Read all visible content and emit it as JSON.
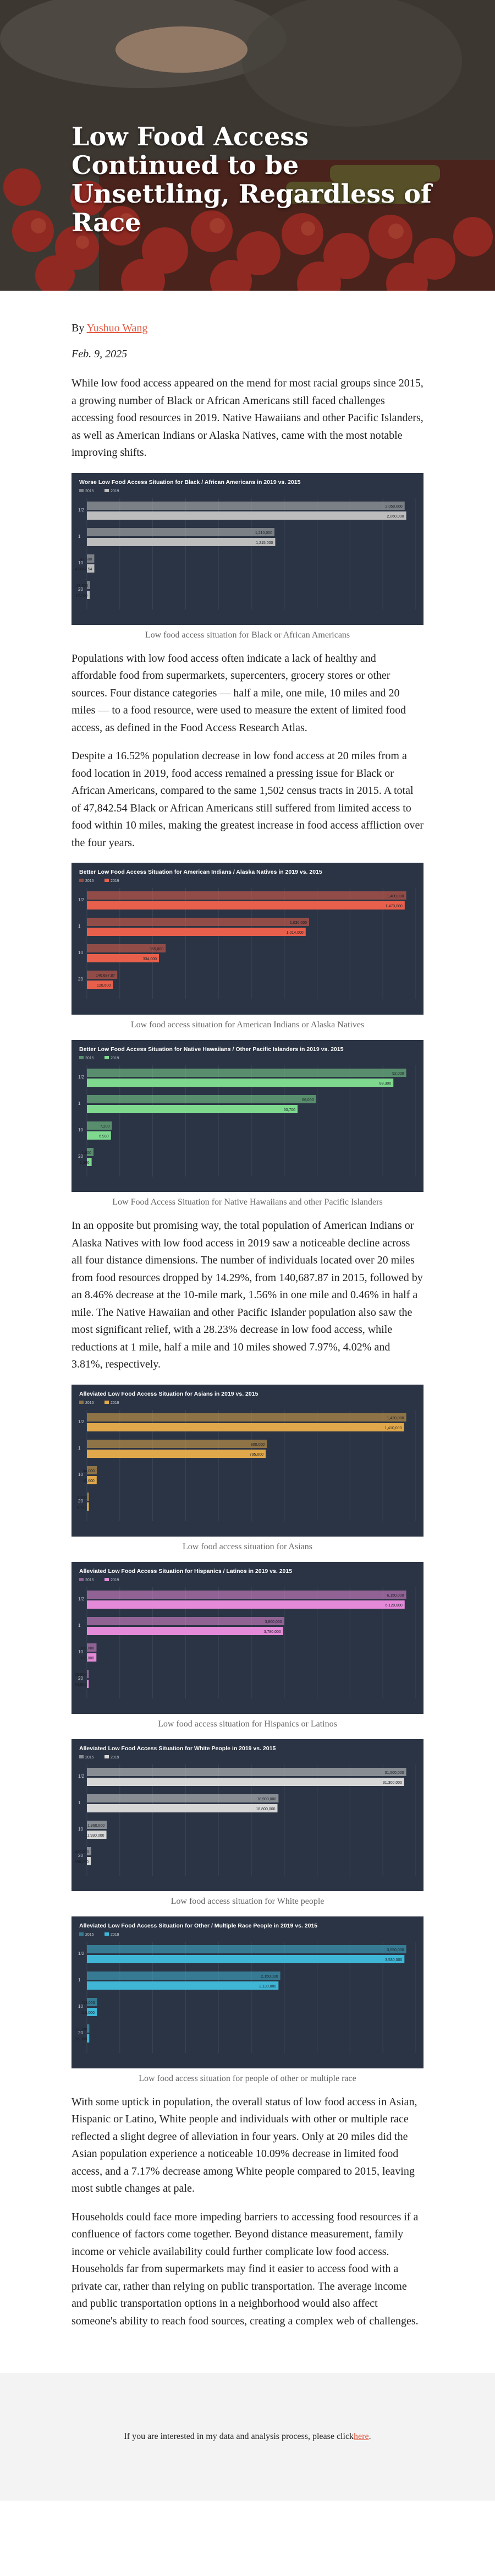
{
  "hero": {
    "title": "Low Food Access Continued to be Unsettling, Regardless of Race"
  },
  "byline": {
    "prefix": "By ",
    "author": "Yushuo Wang"
  },
  "date": "Feb. 9, 2025",
  "paragraphs": [
    "While low food access appeared on the mend for most racial groups since 2015, a growing number of Black or African Americans still faced challenges accessing food resources in 2019. Native Hawaiians and other Pacific Islanders, as well as American Indians or Alaska Natives, came with the most notable improving shifts.",
    "Populations with low food access often indicate a lack of healthy and affordable food from supermarkets, supercenters, grocery stores or other sources. Four distance categories — half a mile, one mile, 10 miles and 20 miles — to a food resource, were used to measure the extent of limited food access, as defined in the Food Access Research Atlas.",
    "Despite a 16.52% population decrease in low food access at 20 miles from a food location in 2019, food access remained a pressing issue for Black or African Americans, compared to the same 1,502 census tracts in 2015. A total of 47,842.54 Black or African Americans still suffered from limited access to food within 10 miles, making the greatest increase in food access affliction over the four years.",
    "In an opposite but promising way, the total population of American Indians or Alaska Natives with low food access in 2019 saw a noticeable decline across all four distance dimensions. The number of individuals located over 20 miles from food resources dropped by 14.29%, from 140,687.87 in 2015, followed by an 8.46% decrease at the 10-mile mark, 1.56% in one mile and 0.46% in half a mile. The Native Hawaiian and other Pacific Islander population also saw the most significant relief, with a 28.23% decrease in low food access, while reductions at 1 mile, half a mile and 10 miles showed 7.97%, 4.02% and 3.81%, respectively.",
    "With some uptick in population, the overall status of low food access in Asian, Hispanic or Latino, White people and individuals with other or multiple race reflected a slight degree of alleviation in four years. Only at 20 miles did the Asian population experience a noticeable 10.09% decrease in limited food access, and a 7.17% decrease among White people compared to 2015, leaving most subtle changes at pale.",
    "Households could face more impeding barriers to accessing food resources if a confluence of factors come together. Beyond distance measurement, family income or vehicle availability could further complicate low food access. Households far from supermarkets may find it easier to access food with a private car, rather than relying on public transportation. The average income and public transportation options in a neighborhood would also affect someone's ability to reach food sources, creating a complex web of challenges."
  ],
  "figures": [
    {
      "caption": "Low food access situation for Black or African Americans",
      "chart_data": {
        "type": "bar",
        "title": "Worse Low Food Access Situation for Black / African Americans in 2019 vs. 2015",
        "accent": "#bdbdbd",
        "categories": [
          "1/2",
          "1",
          "10",
          "20"
        ],
        "series": [
          {
            "name": "2015",
            "values": [
              2050000,
              1210000,
              47600,
              21200
            ]
          },
          {
            "name": "2019",
            "values": [
              2060000,
              1215000,
              47842.54,
              17700
            ]
          }
        ]
      }
    },
    {
      "caption": "Low food access situation for American Indians or Alaska Natives",
      "chart_data": {
        "type": "bar",
        "title": "Better Low Food Access Situation for American Indians / Alaska Natives in 2019 vs. 2015",
        "accent": "#e8604c",
        "categories": [
          "1/2",
          "1",
          "10",
          "20"
        ],
        "series": [
          {
            "name": "2015",
            "values": [
              1480000,
              1030000,
              365000,
              140687.87
            ]
          },
          {
            "name": "2019",
            "values": [
              1473000,
              1014000,
              334000,
              120600
            ]
          }
        ]
      }
    },
    {
      "caption": "Low Food Access Situation for Native Hawaiians and other Pacific Islanders",
      "chart_data": {
        "type": "bar",
        "title": "Better Low Food Access Situation for Native Hawaiians / Other Pacific Islanders in 2019 vs. 2015",
        "accent": "#7ed98f",
        "categories": [
          "1/2",
          "1",
          "10",
          "20"
        ],
        "series": [
          {
            "name": "2015",
            "values": [
              92000,
              66000,
              7200,
              1900
            ]
          },
          {
            "name": "2019",
            "values": [
              88300,
              60700,
              6930,
              1360
            ]
          }
        ]
      }
    },
    {
      "caption": "Low food access situation for Asians",
      "chart_data": {
        "type": "bar",
        "title": "Alleviated Low Food Access Situation for Asians in 2019 vs. 2015",
        "accent": "#e0a84a",
        "categories": [
          "1/2",
          "1",
          "10",
          "20"
        ],
        "series": [
          {
            "name": "2015",
            "values": [
              1420000,
              800000,
              44000,
              9700
            ]
          },
          {
            "name": "2019",
            "values": [
              1410000,
              795000,
              43600,
              8720
            ]
          }
        ]
      }
    },
    {
      "caption": "Low food access situation for Hispanics or Latinos",
      "chart_data": {
        "type": "bar",
        "title": "Alleviated Low Food Access Situation for Hispanics / Latinos in 2019 vs. 2015",
        "accent": "#e58ad8",
        "categories": [
          "1/2",
          "1",
          "10",
          "20"
        ],
        "series": [
          {
            "name": "2015",
            "values": [
              6150000,
              3800000,
              185000,
              36000
            ]
          },
          {
            "name": "2019",
            "values": [
              6120000,
              3780000,
              183000,
              34800
            ]
          }
        ]
      }
    },
    {
      "caption": "Low food access situation for White people",
      "chart_data": {
        "type": "bar",
        "title": "Alleviated Low Food Access Situation for White People in 2019 vs. 2015",
        "accent": "#d6d6d6",
        "categories": [
          "1/2",
          "1",
          "10",
          "20"
        ],
        "series": [
          {
            "name": "2015",
            "values": [
              31500000,
              18900000,
              1960000,
              420000
            ]
          },
          {
            "name": "2019",
            "values": [
              31300000,
              18800000,
              1930000,
              390000
            ]
          }
        ]
      }
    },
    {
      "caption": "Low food access situation for people of other or multiple race",
      "chart_data": {
        "type": "bar",
        "title": "Alleviated Low Food Access Situation for Other / Multiple Race People in 2019 vs. 2015",
        "accent": "#3fb6d6",
        "categories": [
          "1/2",
          "1",
          "10",
          "20"
        ],
        "series": [
          {
            "name": "2015",
            "values": [
              3550000,
              2150000,
              113000,
              27000
            ]
          },
          {
            "name": "2019",
            "values": [
              3530000,
              2130000,
              110000,
              26300
            ]
          }
        ]
      }
    }
  ],
  "footer": {
    "text": "If you are interested in my data and analysis process, please click ",
    "link": "here",
    "end": "."
  }
}
